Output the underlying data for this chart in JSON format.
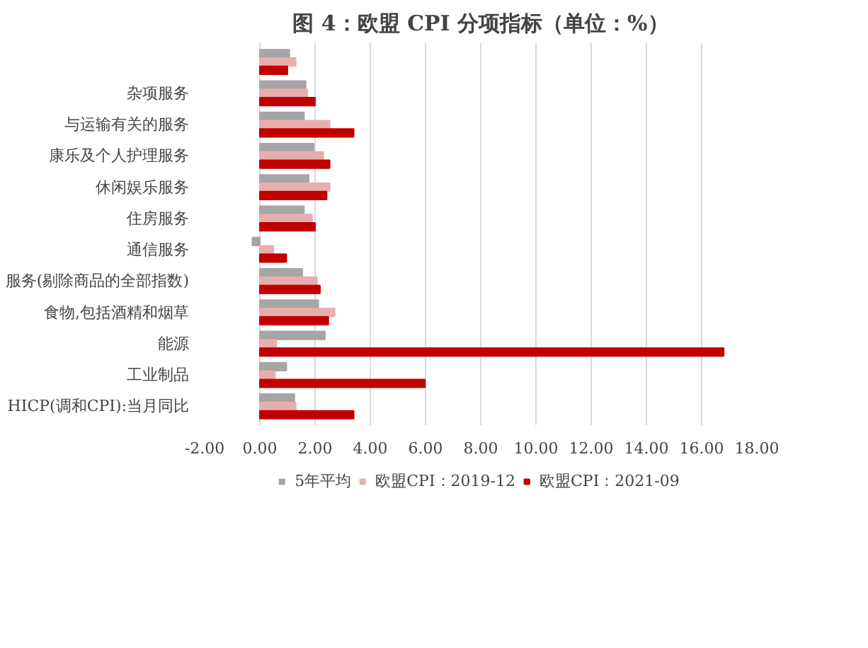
{
  "chart_data": {
    "type": "bar",
    "orientation": "horizontal",
    "title": "图 4：欧盟 CPI 分项指标（单位：%）",
    "categories": [
      null,
      "杂项服务",
      "与运输有关的服务",
      "康乐及个人护理服务",
      "休闲娱乐服务",
      "住房服务",
      "通信服务",
      "服务(剔除商品的全部指数)",
      "食物,包括酒精和烟草",
      "能源",
      "工业制品",
      "HICP(调和CPI):当月同比"
    ],
    "series": [
      {
        "name": "5年平均",
        "color": "#a5a5a5",
        "values": [
          1.07,
          1.66,
          1.6,
          1.95,
          1.77,
          1.6,
          -0.27,
          1.54,
          2.12,
          2.36,
          0.96,
          1.25
        ]
      },
      {
        "name": "欧盟CPI：2019-12",
        "color": "#e8aeae",
        "values": [
          1.3,
          1.72,
          2.53,
          2.3,
          2.53,
          1.89,
          0.49,
          2.07,
          2.71,
          0.6,
          0.55,
          1.3
        ]
      },
      {
        "name": "欧盟CPI：2021-09",
        "color": "#c00000",
        "values": [
          1.0,
          2.0,
          3.4,
          2.53,
          2.42,
          2.0,
          0.96,
          2.18,
          2.48,
          16.8,
          5.98,
          3.4
        ]
      }
    ],
    "xlim": [
      -2,
      18
    ],
    "xticks": [
      {
        "value": -2,
        "label": "-2.00"
      },
      {
        "value": 0,
        "label": "0.00"
      },
      {
        "value": 2,
        "label": "2.00"
      },
      {
        "value": 4,
        "label": "4.00"
      },
      {
        "value": 6,
        "label": "6.00"
      },
      {
        "value": 8,
        "label": "8.00"
      },
      {
        "value": 10,
        "label": "10.00"
      },
      {
        "value": 12,
        "label": "12.00"
      },
      {
        "value": 14,
        "label": "14.00"
      },
      {
        "value": 16,
        "label": "16.00"
      },
      {
        "value": 18,
        "label": "18.00"
      }
    ],
    "grid": "x",
    "legend": "bottom"
  }
}
